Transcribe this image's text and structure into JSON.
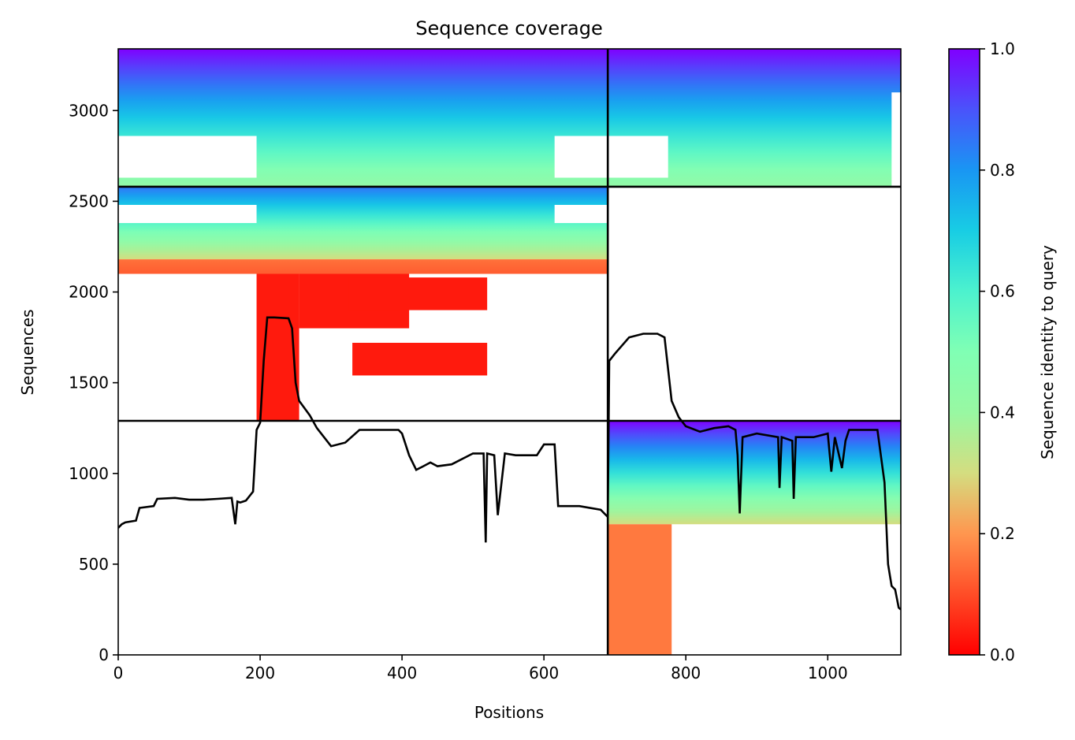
{
  "chart_data": {
    "type": "heatmap",
    "title": "Sequence coverage",
    "xlabel": "Positions",
    "ylabel": "Sequences",
    "xlim": [
      0,
      1103
    ],
    "ylim": [
      0,
      3340
    ],
    "x_ticks": [
      0,
      200,
      400,
      600,
      800,
      1000
    ],
    "y_ticks": [
      0,
      500,
      1000,
      1500,
      2000,
      2500,
      3000
    ],
    "colorbar": {
      "label": "Sequence identity to query",
      "range": [
        0.0,
        1.0
      ],
      "ticks": [
        0.0,
        0.2,
        0.4,
        0.6,
        0.8,
        1.0
      ],
      "tick_labels": [
        "0.0",
        "0.2",
        "0.4",
        "0.6",
        "0.8",
        "1.0"
      ],
      "colormap": "rainbow_r"
    },
    "chain_boundaries": {
      "x": [
        690
      ],
      "y": [
        1290,
        2580
      ]
    },
    "coverage_blocks": [
      {
        "x": [
          0,
          690
        ],
        "y": [
          2580,
          3340
        ],
        "identity_top": 1.0,
        "identity_bottom": 0.42
      },
      {
        "x": [
          0,
          195
        ],
        "y": [
          2630,
          2860
        ],
        "identity_top": null,
        "identity_bottom": null,
        "gap": true
      },
      {
        "x": [
          615,
          690
        ],
        "y": [
          2630,
          2860
        ],
        "identity_top": null,
        "identity_bottom": null,
        "gap": true
      },
      {
        "x": [
          690,
          1103
        ],
        "y": [
          2580,
          3340
        ],
        "identity_top": 1.0,
        "identity_bottom": 0.42
      },
      {
        "x": [
          690,
          775
        ],
        "y": [
          2630,
          2860
        ],
        "identity_top": null,
        "identity_bottom": null,
        "gap": true
      },
      {
        "x": [
          1090,
          1103
        ],
        "y": [
          2580,
          3100
        ],
        "identity_top": null,
        "identity_bottom": null,
        "gap": true
      },
      {
        "x": [
          0,
          690
        ],
        "y": [
          2180,
          2580
        ],
        "identity_top": 0.85,
        "identity_bottom": 0.3
      },
      {
        "x": [
          0,
          195
        ],
        "y": [
          2380,
          2480
        ],
        "identity_top": null,
        "identity_bottom": null,
        "gap": true
      },
      {
        "x": [
          615,
          690
        ],
        "y": [
          2380,
          2480
        ],
        "identity_top": null,
        "identity_bottom": null,
        "gap": true
      },
      {
        "x": [
          0,
          690
        ],
        "y": [
          2100,
          2180
        ],
        "identity_top": 0.15,
        "identity_bottom": 0.12
      },
      {
        "x": [
          690,
          1103
        ],
        "y": [
          720,
          1290
        ],
        "identity_top": 1.0,
        "identity_bottom": 0.3
      },
      {
        "x": [
          690,
          780
        ],
        "y": [
          0,
          720
        ],
        "identity_top": 0.16,
        "identity_bottom": 0.16
      }
    ],
    "red_blocks": [
      {
        "x": [
          195,
          255
        ],
        "y": [
          1290,
          2100
        ]
      },
      {
        "x": [
          255,
          410
        ],
        "y": [
          1800,
          2100
        ]
      },
      {
        "x": [
          325,
          520
        ],
        "y": [
          1900,
          2080
        ]
      },
      {
        "x": [
          330,
          520
        ],
        "y": [
          1540,
          1720
        ]
      }
    ],
    "coverage_line": {
      "x": [
        0,
        5,
        10,
        25,
        30,
        50,
        55,
        80,
        100,
        120,
        140,
        160,
        165,
        168,
        172,
        180,
        190,
        195,
        200,
        205,
        210,
        215,
        220,
        240,
        245,
        250,
        255,
        270,
        280,
        290,
        300,
        320,
        340,
        360,
        380,
        395,
        400,
        410,
        420,
        430,
        440,
        450,
        470,
        500,
        515,
        518,
        520,
        530,
        535,
        545,
        560,
        590,
        600,
        615,
        620,
        650,
        680,
        690,
        692,
        700,
        720,
        740,
        760,
        770,
        780,
        790,
        800,
        820,
        840,
        860,
        870,
        873,
        876,
        880,
        900,
        930,
        932,
        935,
        950,
        952,
        955,
        980,
        1000,
        1005,
        1010,
        1020,
        1025,
        1030,
        1050,
        1070,
        1080,
        1085,
        1090,
        1095,
        1100,
        1103
      ],
      "y": [
        700,
        720,
        730,
        740,
        810,
        820,
        860,
        865,
        855,
        855,
        860,
        865,
        720,
        845,
        840,
        850,
        900,
        1240,
        1280,
        1620,
        1860,
        1860,
        1860,
        1855,
        1800,
        1500,
        1400,
        1320,
        1250,
        1200,
        1150,
        1170,
        1240,
        1240,
        1240,
        1240,
        1220,
        1100,
        1020,
        1040,
        1060,
        1040,
        1050,
        1110,
        1110,
        620,
        1110,
        1100,
        770,
        1110,
        1100,
        1100,
        1160,
        1160,
        820,
        820,
        800,
        760,
        1620,
        1660,
        1750,
        1770,
        1770,
        1750,
        1400,
        1310,
        1260,
        1230,
        1250,
        1260,
        1240,
        1100,
        780,
        1200,
        1220,
        1200,
        920,
        1200,
        1180,
        860,
        1200,
        1200,
        1220,
        1010,
        1200,
        1030,
        1180,
        1240,
        1240,
        1240,
        950,
        500,
        380,
        360,
        260,
        250
      ]
    }
  }
}
